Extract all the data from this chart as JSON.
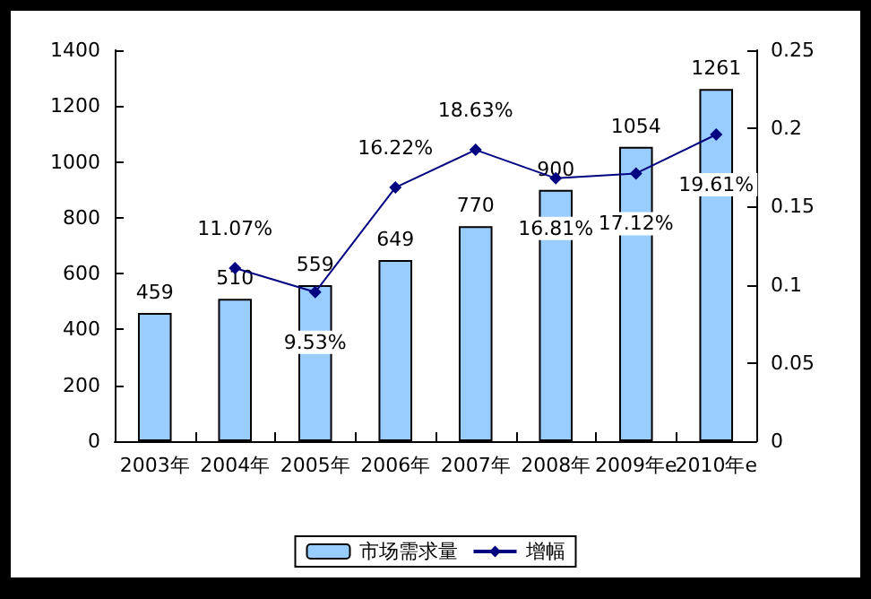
{
  "chart_data": {
    "type": "bar",
    "categories": [
      "2003年",
      "2004年",
      "2005年",
      "2006年",
      "2007年",
      "2008年",
      "2009年e",
      "2010年e"
    ],
    "series": [
      {
        "name": "市场需求量",
        "color": "#99ccff",
        "values": [
          459,
          510,
          559,
          649,
          770,
          900,
          1054,
          1261
        ],
        "value_labels": [
          "459",
          "510",
          "559",
          "649",
          "770",
          "900",
          "1054",
          "1261"
        ]
      },
      {
        "name": "增幅",
        "type": "line",
        "axis": "y2",
        "color": "#000080",
        "marker": "diamond",
        "values": [
          null,
          0.1107,
          0.0953,
          0.1622,
          0.1863,
          0.1681,
          0.1712,
          0.1961
        ],
        "value_labels": [
          null,
          "11.07%",
          "9.53%",
          "16.22%",
          "18.63%",
          "16.81%",
          "17.12%",
          "19.61%"
        ]
      }
    ],
    "ylim": [
      0,
      1400
    ],
    "yticks": [
      0,
      200,
      400,
      600,
      800,
      1000,
      1200,
      1400
    ],
    "y2lim": [
      0,
      0.25
    ],
    "y2ticks": [
      0,
      0.05,
      0.1,
      0.15,
      0.2,
      0.25
    ],
    "legend": "bottom",
    "grid": false
  }
}
